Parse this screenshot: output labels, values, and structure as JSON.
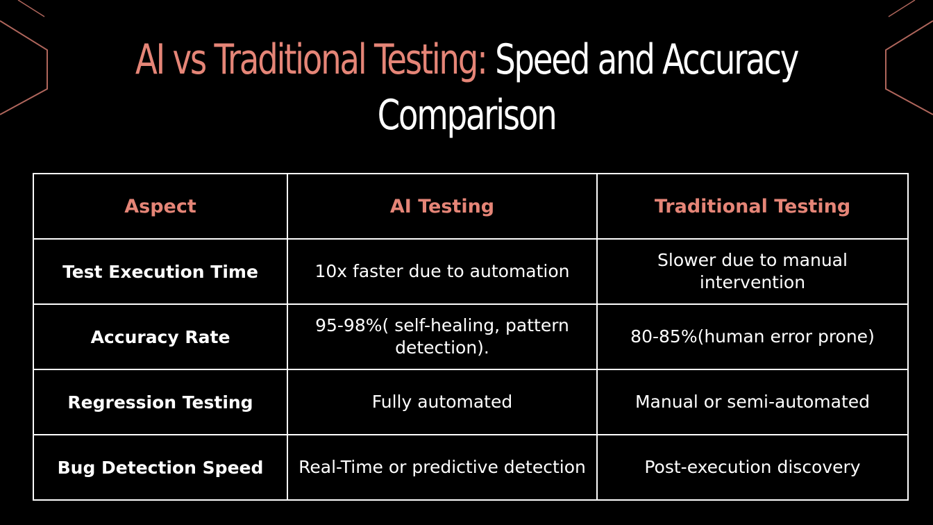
{
  "title": {
    "accent": "AI vs Traditional Testing:",
    "main": " Speed and Accuracy Comparison"
  },
  "colors": {
    "background": "#000000",
    "accent": "#e58577",
    "text": "#ffffff"
  },
  "table": {
    "headers": [
      "Aspect",
      "AI Testing",
      "Traditional Testing"
    ],
    "rows": [
      {
        "aspect": "Test Execution Time",
        "ai": "10x faster due to automation",
        "traditional": "Slower due to manual intervention"
      },
      {
        "aspect": "Accuracy Rate",
        "ai": "95-98%( self-healing, pattern detection).",
        "traditional": "80-85%(human error prone)"
      },
      {
        "aspect": "Regression Testing",
        "ai": "Fully automated",
        "traditional": "Manual or semi-automated"
      },
      {
        "aspect": "Bug Detection Speed",
        "ai": "Real-Time or predictive detection",
        "traditional": "Post-execution discovery"
      }
    ]
  }
}
